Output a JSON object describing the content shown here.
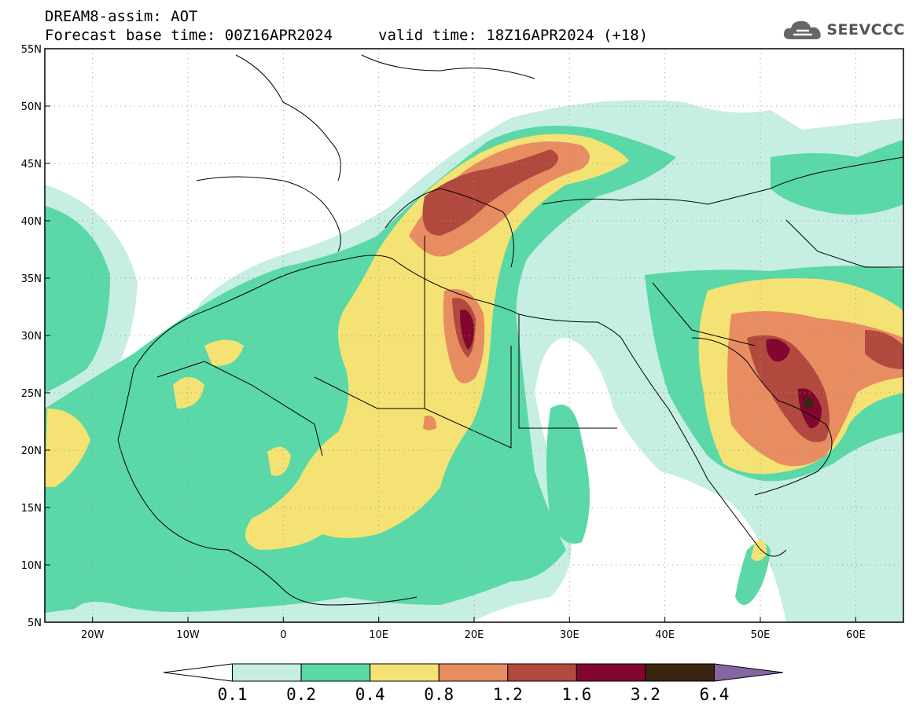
{
  "header": {
    "title_line1": "DREAM8-assim: AOT",
    "base_time": "Forecast base time: 00Z16APR2024",
    "valid_time": "valid time: 18Z16APR2024 (+18)"
  },
  "logo": {
    "text": "SEEVCCC",
    "icon": "cloud-icon"
  },
  "map": {
    "projection": "lat-lon",
    "lon_range": [
      -25,
      65
    ],
    "lat_range": [
      5,
      55
    ],
    "lat_ticks": [
      {
        "value": 55,
        "label": "55N"
      },
      {
        "value": 50,
        "label": "50N"
      },
      {
        "value": 45,
        "label": "45N"
      },
      {
        "value": 40,
        "label": "40N"
      },
      {
        "value": 35,
        "label": "35N"
      },
      {
        "value": 30,
        "label": "30N"
      },
      {
        "value": 25,
        "label": "25N"
      },
      {
        "value": 20,
        "label": "20N"
      },
      {
        "value": 15,
        "label": "15N"
      },
      {
        "value": 10,
        "label": "10N"
      },
      {
        "value": 5,
        "label": "5N"
      }
    ],
    "lon_ticks": [
      {
        "value": -20,
        "label": "20W"
      },
      {
        "value": -10,
        "label": "10W"
      },
      {
        "value": 0,
        "label": "0"
      },
      {
        "value": 10,
        "label": "10E"
      },
      {
        "value": 20,
        "label": "20E"
      },
      {
        "value": 30,
        "label": "30E"
      },
      {
        "value": 40,
        "label": "40E"
      },
      {
        "value": 50,
        "label": "50E"
      },
      {
        "value": 60,
        "label": "60E"
      }
    ],
    "gridlines": true
  },
  "colorbar": {
    "levels": [
      "0.1",
      "0.2",
      "0.4",
      "0.8",
      "1.2",
      "1.6",
      "3.2",
      "6.4"
    ],
    "colors": [
      "#ffffff",
      "#c6eee2",
      "#5ad8a7",
      "#f4e274",
      "#e88c62",
      "#b2493f",
      "#82062e",
      "#3b2511",
      "#8466a3"
    ]
  }
}
